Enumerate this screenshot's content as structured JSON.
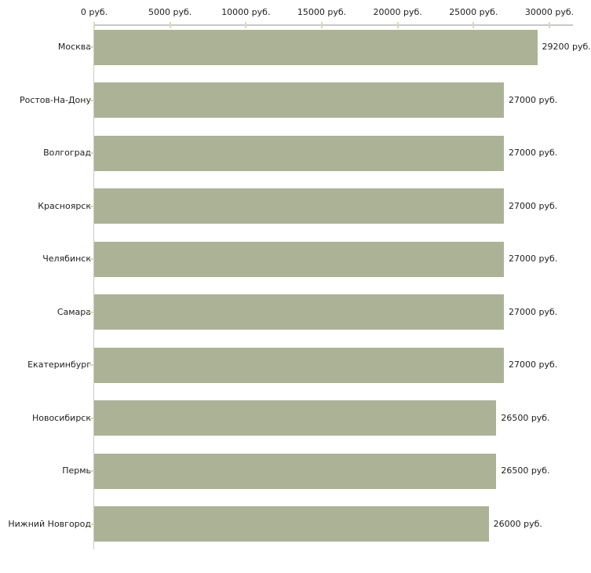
{
  "chart_data": {
    "type": "bar",
    "orientation": "horizontal",
    "title": "",
    "categories": [
      "Москва",
      "Ростов-На-Дону",
      "Волгоград",
      "Красноярск",
      "Челябинск",
      "Самара",
      "Екатеринбург",
      "Новосибирск",
      "Пермь",
      "Нижний Новгород"
    ],
    "values": [
      29200,
      27000,
      27000,
      27000,
      27000,
      27000,
      27000,
      26500,
      26500,
      26000
    ],
    "value_labels": [
      "29200 руб.",
      "27000 руб.",
      "27000 руб.",
      "27000 руб.",
      "27000 руб.",
      "27000 руб.",
      "27000 руб.",
      "26500 руб.",
      "26500 руб.",
      "26000 руб."
    ],
    "x_axis": {
      "position": "top",
      "min": 0,
      "max": 30000,
      "tick_values": [
        0,
        5000,
        10000,
        15000,
        20000,
        25000,
        30000
      ],
      "tick_labels": [
        "0 руб.",
        "5000 руб.",
        "10000 руб.",
        "15000 руб.",
        "20000 руб.",
        "25000 руб.",
        "30000 руб."
      ]
    },
    "legend": "none",
    "grid": "off",
    "colors": {
      "bar": "#acb296",
      "axis_line": "#c9c9c9",
      "tick_mark": "#d6d9b8",
      "text": "#1e1e1e",
      "background": "#ffffff"
    }
  }
}
